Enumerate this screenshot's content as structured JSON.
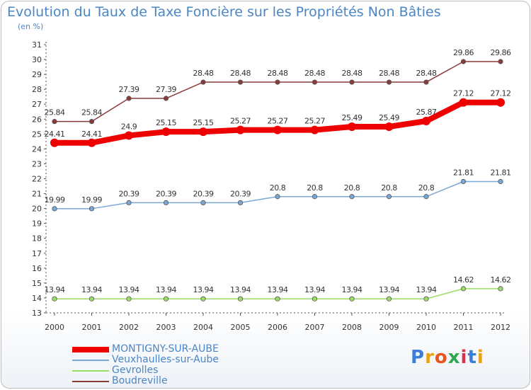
{
  "title": "Evolution du Taux de Taxe Foncière sur les Propriétés Non Bâties",
  "unit_label": "(en %)",
  "logo": {
    "text": "Proxiti",
    "colors": [
      "#3b7dd8",
      "#e8a317",
      "#e8551d",
      "#2fa84f",
      "#d8324f",
      "#3b7dd8",
      "#e8a317"
    ]
  },
  "chart_data": {
    "type": "line",
    "x": [
      "2000",
      "2001",
      "2002",
      "2003",
      "2004",
      "2005",
      "2006",
      "2007",
      "2008",
      "2009",
      "2010",
      "2011",
      "2012"
    ],
    "ylim": [
      13,
      31
    ],
    "yticks": [
      "13",
      "14",
      "15",
      "16",
      "17",
      "18",
      "19",
      "20",
      "21",
      "22",
      "23",
      "24",
      "25",
      "26",
      "27",
      "28",
      "29",
      "30",
      "31"
    ],
    "grid": false,
    "series": [
      {
        "name": "MONTIGNY-SUR-AUBE",
        "color": "#ee0000",
        "width": 8,
        "values": [
          24.41,
          24.41,
          24.9,
          25.15,
          25.15,
          25.27,
          25.27,
          25.27,
          25.49,
          25.49,
          25.87,
          27.12,
          27.12
        ],
        "labels": [
          "24.41",
          "24.41",
          "24.9",
          "25.15",
          "25.15",
          "25.27",
          "25.27",
          "25.27",
          "25.49",
          "25.49",
          "25.87",
          "27.12",
          "27.12"
        ]
      },
      {
        "name": "Veuxhaulles-sur-Aube",
        "color": "#7aa7d4",
        "width": 1.5,
        "values": [
          19.99,
          19.99,
          20.39,
          20.39,
          20.39,
          20.39,
          20.8,
          20.8,
          20.8,
          20.8,
          20.8,
          21.81,
          21.81
        ],
        "labels": [
          "19.99",
          "19.99",
          "20.39",
          "20.39",
          "20.39",
          "20.39",
          "20.8",
          "20.8",
          "20.8",
          "20.8",
          "20.8",
          "21.81",
          "21.81"
        ]
      },
      {
        "name": "Gevrolles",
        "color": "#99dd66",
        "width": 1.5,
        "values": [
          13.94,
          13.94,
          13.94,
          13.94,
          13.94,
          13.94,
          13.94,
          13.94,
          13.94,
          13.94,
          13.94,
          14.62,
          14.62
        ],
        "labels": [
          "13.94",
          "13.94",
          "13.94",
          "13.94",
          "13.94",
          "13.94",
          "13.94",
          "13.94",
          "13.94",
          "13.94",
          "13.94",
          "14.62",
          "14.62"
        ]
      },
      {
        "name": "Boudreville",
        "color": "#8b3a3a",
        "width": 1.5,
        "values": [
          25.84,
          25.84,
          27.39,
          27.39,
          28.48,
          28.48,
          28.48,
          28.48,
          28.48,
          28.48,
          28.48,
          29.86,
          29.86
        ],
        "labels": [
          "25.84",
          "25.84",
          "27.39",
          "27.39",
          "28.48",
          "28.48",
          "28.48",
          "28.48",
          "28.48",
          "28.48",
          "28.48",
          "29.86",
          "29.86"
        ]
      }
    ]
  }
}
